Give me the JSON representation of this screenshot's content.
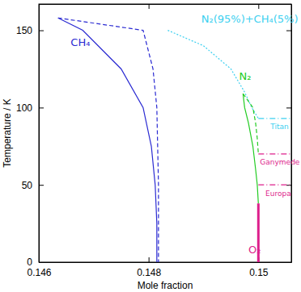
{
  "chart_data": {
    "type": "line",
    "x_label": "Mole fraction",
    "y_label": "Temperature / K",
    "xlim": [
      0.146,
      0.1506
    ],
    "ylim": [
      0,
      167
    ],
    "xticks": [
      0.146,
      0.148,
      0.15
    ],
    "yticks": [
      0,
      50,
      100,
      150
    ],
    "grid": false,
    "series": [
      {
        "color": "#2a2ad2",
        "line_style": "solid",
        "x": [
          0.14635,
          0.1468,
          0.1475,
          0.1479,
          0.14805,
          0.14812,
          0.14815,
          0.14815
        ],
        "values": [
          158,
          150,
          125,
          100,
          75,
          50,
          25,
          0
        ]
      },
      {
        "color": "#2a2ad2",
        "line_style": "dashed",
        "x": [
          0.14635,
          0.1479,
          0.14808,
          0.14815,
          0.14818,
          0.14818
        ],
        "values": [
          158,
          150,
          125,
          100,
          50,
          0
        ]
      },
      {
        "color": "#3cd0f0",
        "line_style": "dotted",
        "x": [
          0.14835,
          0.149,
          0.1495,
          0.14975,
          0.14988,
          0.15
        ],
        "values": [
          150,
          140,
          125,
          110,
          100,
          93
        ]
      },
      {
        "color": "#22cc22",
        "line_style": "solid",
        "x": [
          0.14972,
          0.14975,
          0.14982,
          0.1499,
          0.14995,
          0.14998,
          0.15
        ],
        "values": [
          109,
          100,
          90,
          75,
          60,
          50,
          38
        ]
      },
      {
        "color": "#22cc22",
        "line_style": "dashed",
        "x": [
          0.14972,
          0.1499,
          0.14995,
          0.14998,
          0.15
        ],
        "values": [
          109,
          100,
          90,
          80,
          70
        ]
      },
      {
        "color": "#dd1f8c",
        "line_style": "thick",
        "x": [
          0.15,
          0.15
        ],
        "values": [
          0,
          38
        ]
      },
      {
        "color": "#3cd0f0",
        "line_style": "dashdot",
        "x": [
          0.15,
          0.1506
        ],
        "values": [
          93,
          93
        ]
      },
      {
        "color": "#dd1f8c",
        "line_style": "dashdot",
        "x": [
          0.15,
          0.1506
        ],
        "values": [
          70,
          70
        ]
      },
      {
        "color": "#dd1f8c",
        "line_style": "dashdot",
        "x": [
          0.15,
          0.1506
        ],
        "values": [
          50,
          50
        ]
      }
    ],
    "annotations": [
      {
        "text": "CH₄",
        "x": 0.14658,
        "y": 140,
        "color": "#2a2ad2"
      },
      {
        "text": "N₂(95%)+CH₄(5%)",
        "x": 0.14896,
        "y": 155,
        "color": "#3cd0f0"
      },
      {
        "text": "N₂",
        "x": 0.14965,
        "y": 118,
        "color": "#22cc22"
      },
      {
        "text": "O₂",
        "x": 0.14982,
        "y": 6,
        "color": "#dd1f8c"
      },
      {
        "text": "Titan",
        "x": 0.15022,
        "y": 86,
        "color": "#3cd0f0"
      },
      {
        "text": "Ganymede",
        "x": 0.15003,
        "y": 63,
        "color": "#dd1f8c"
      },
      {
        "text": "Europa",
        "x": 0.15013,
        "y": 43,
        "color": "#dd1f8c"
      }
    ]
  }
}
